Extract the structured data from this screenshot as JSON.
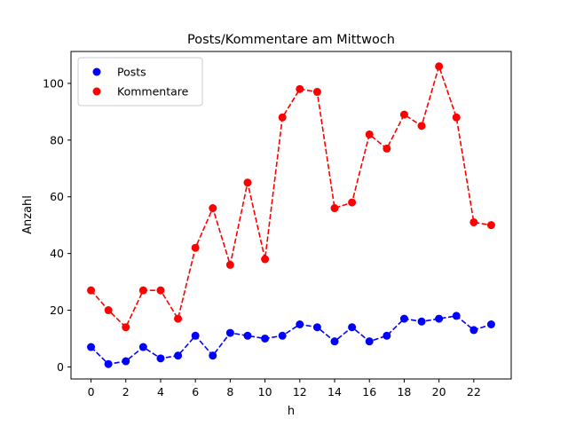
{
  "chart_data": {
    "type": "line",
    "title": "Posts/Kommentare am Mittwoch",
    "xlabel": "h",
    "ylabel": "Anzahl",
    "x": [
      0,
      1,
      2,
      3,
      4,
      5,
      6,
      7,
      8,
      9,
      10,
      11,
      12,
      13,
      14,
      15,
      16,
      17,
      18,
      19,
      20,
      21,
      22,
      23
    ],
    "xlim": [
      -1.15,
      24.15
    ],
    "ylim": [
      -4.25,
      111.25
    ],
    "xticks": [
      "0",
      "2",
      "4",
      "6",
      "8",
      "10",
      "12",
      "14",
      "16",
      "18",
      "20",
      "22"
    ],
    "yticks": [
      "0",
      "20",
      "40",
      "60",
      "80",
      "100"
    ],
    "grid": false,
    "legend_position": "top-left",
    "series": [
      {
        "name": "Posts",
        "color": "#0000ff",
        "line_style": "dashed",
        "marker": "circle",
        "values": [
          7,
          1,
          2,
          7,
          3,
          4,
          11,
          4,
          12,
          11,
          10,
          11,
          15,
          14,
          9,
          14,
          9,
          11,
          17,
          16,
          17,
          18,
          13,
          15
        ]
      },
      {
        "name": "Kommentare",
        "color": "#ff0000",
        "line_style": "dashed",
        "marker": "circle",
        "values": [
          27,
          20,
          14,
          27,
          27,
          17,
          42,
          56,
          36,
          65,
          38,
          88,
          98,
          97,
          56,
          58,
          82,
          77,
          89,
          85,
          106,
          88,
          51,
          50
        ]
      }
    ]
  }
}
